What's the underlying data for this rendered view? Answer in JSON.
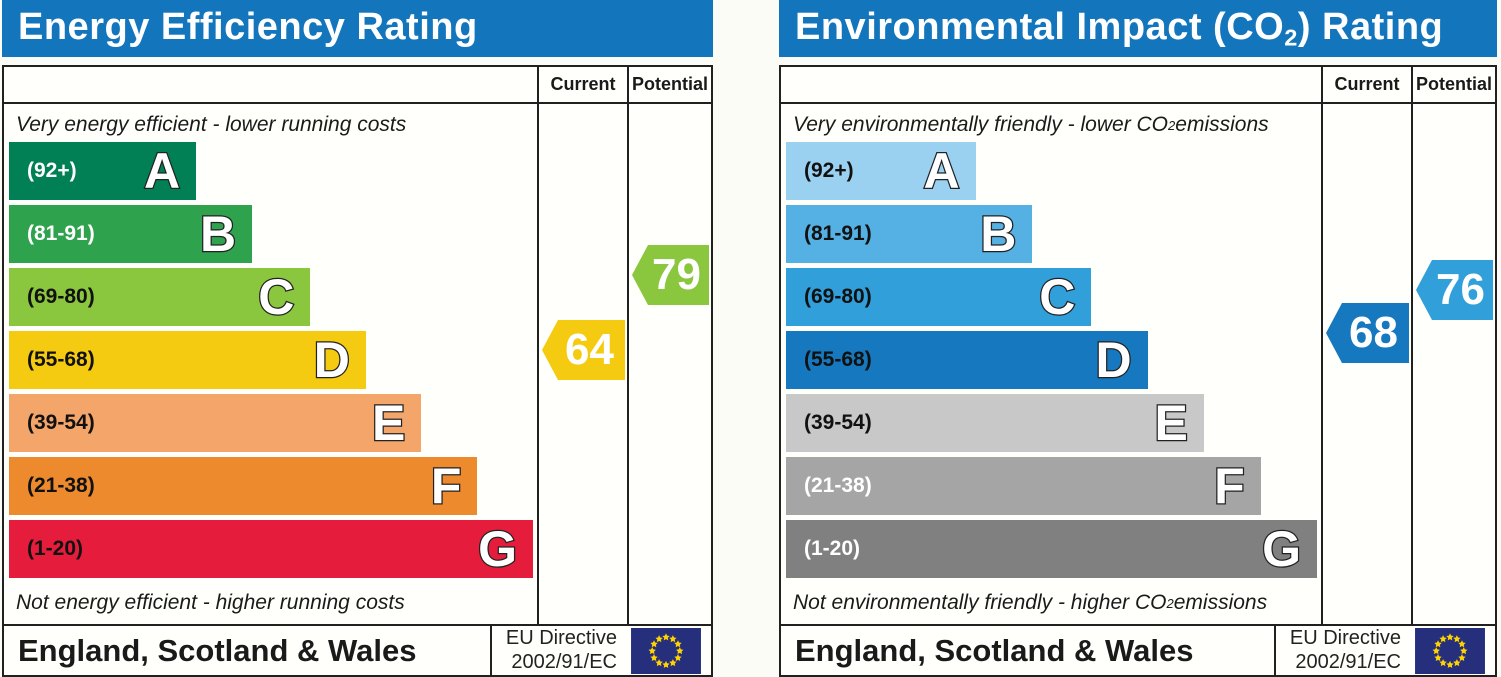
{
  "charts": [
    {
      "header": {
        "title_pre": "Energy Efficiency Rating",
        "title_sub": "",
        "title_post": "",
        "bg": "#1376bd"
      },
      "table": {
        "current_label": "Current",
        "potential_label": "Potential"
      },
      "captions": {
        "top_pre": "Very energy efficient - lower running costs",
        "top_sub": "",
        "top_post": "",
        "bottom_pre": "Not energy efficient - higher running costs",
        "bottom_sub": "",
        "bottom_post": ""
      },
      "bands": [
        {
          "letter": "A",
          "range_label": "(92+)",
          "lo": 92,
          "hi": 100,
          "color": "#008054",
          "label_color": "#ffffff",
          "width_pct": 35.7
        },
        {
          "letter": "B",
          "range_label": "(81-91)",
          "lo": 81,
          "hi": 91,
          "color": "#2ea24c",
          "label_color": "#ffffff",
          "width_pct": 46.4
        },
        {
          "letter": "C",
          "range_label": "(69-80)",
          "lo": 69,
          "hi": 80,
          "color": "#8bc63f",
          "label_color": "#111111",
          "width_pct": 57.5
        },
        {
          "letter": "D",
          "range_label": "(55-68)",
          "lo": 55,
          "hi": 68,
          "color": "#f5cb11",
          "label_color": "#111111",
          "width_pct": 68.1
        },
        {
          "letter": "E",
          "range_label": "(39-54)",
          "lo": 39,
          "hi": 54,
          "color": "#f4a56a",
          "label_color": "#111111",
          "width_pct": 78.7
        },
        {
          "letter": "F",
          "range_label": "(21-38)",
          "lo": 21,
          "hi": 38,
          "color": "#ee8a2e",
          "label_color": "#111111",
          "width_pct": 89.4
        },
        {
          "letter": "G",
          "range_label": "(1-20)",
          "lo": 1,
          "hi": 20,
          "color": "#e51c3b",
          "label_color": "#111111",
          "width_pct": 100
        }
      ],
      "current": {
        "value": "64",
        "num": 64,
        "color": "#f5cb11"
      },
      "potential": {
        "value": "79",
        "num": 79,
        "color": "#8bc63f"
      },
      "footer": {
        "region": "England, Scotland & Wales",
        "directive_line1": "EU Directive",
        "directive_line2": "2002/91/EC"
      }
    },
    {
      "header": {
        "title_pre": "Environmental Impact (CO",
        "title_sub": "2",
        "title_post": ") Rating",
        "bg": "#1376bd"
      },
      "table": {
        "current_label": "Current",
        "potential_label": "Potential"
      },
      "captions": {
        "top_pre": "Very environmentally friendly - lower CO",
        "top_sub": "2",
        "top_post": " emissions",
        "bottom_pre": "Not environmentally friendly - higher CO",
        "bottom_sub": "2",
        "bottom_post": " emissions"
      },
      "bands": [
        {
          "letter": "A",
          "range_label": "(92+)",
          "lo": 92,
          "hi": 100,
          "color": "#9ad1f0",
          "label_color": "#111111",
          "width_pct": 35.7
        },
        {
          "letter": "B",
          "range_label": "(81-91)",
          "lo": 81,
          "hi": 91,
          "color": "#55b0e4",
          "label_color": "#111111",
          "width_pct": 46.4
        },
        {
          "letter": "C",
          "range_label": "(69-80)",
          "lo": 69,
          "hi": 80,
          "color": "#319fd9",
          "label_color": "#111111",
          "width_pct": 57.5
        },
        {
          "letter": "D",
          "range_label": "(55-68)",
          "lo": 55,
          "hi": 68,
          "color": "#1678be",
          "label_color": "#111111",
          "width_pct": 68.1
        },
        {
          "letter": "E",
          "range_label": "(39-54)",
          "lo": 39,
          "hi": 54,
          "color": "#c8c8c8",
          "label_color": "#111111",
          "width_pct": 78.7
        },
        {
          "letter": "F",
          "range_label": "(21-38)",
          "lo": 21,
          "hi": 38,
          "color": "#a5a5a5",
          "label_color": "#ffffff",
          "width_pct": 89.4
        },
        {
          "letter": "G",
          "range_label": "(1-20)",
          "lo": 1,
          "hi": 20,
          "color": "#808080",
          "label_color": "#ffffff",
          "width_pct": 100
        }
      ],
      "current": {
        "value": "68",
        "num": 68,
        "color": "#1678be"
      },
      "potential": {
        "value": "76",
        "num": 76,
        "color": "#319fd9"
      },
      "footer": {
        "region": "England, Scotland & Wales",
        "directive_line1": "EU Directive",
        "directive_line2": "2002/91/EC"
      }
    }
  ],
  "eu_flag": {
    "bg": "#252f7c",
    "star_color": "#ffd200"
  },
  "chart_data": [
    {
      "type": "bar",
      "title": "Energy Efficiency Rating",
      "categories": [
        "A (92+)",
        "B (81-91)",
        "C (69-80)",
        "D (55-68)",
        "E (39-54)",
        "F (21-38)",
        "G (1-20)"
      ],
      "relative_bar_widths": [
        0.36,
        0.46,
        0.58,
        0.68,
        0.79,
        0.89,
        1.0
      ],
      "band_colors": [
        "#008054",
        "#2ea24c",
        "#8bc63f",
        "#f5cb11",
        "#f4a56a",
        "#ee8a2e",
        "#e51c3b"
      ],
      "current": 64,
      "current_band": "D",
      "potential": 79,
      "potential_band": "C",
      "top_caption": "Very energy efficient - lower running costs",
      "bottom_caption": "Not energy efficient - higher running costs",
      "region": "England, Scotland & Wales",
      "directive": "EU Directive 2002/91/EC",
      "legend_position": "right-columns (Current / Potential)"
    },
    {
      "type": "bar",
      "title": "Environmental Impact (CO2) Rating",
      "categories": [
        "A (92+)",
        "B (81-91)",
        "C (69-80)",
        "D (55-68)",
        "E (39-54)",
        "F (21-38)",
        "G (1-20)"
      ],
      "relative_bar_widths": [
        0.36,
        0.46,
        0.58,
        0.68,
        0.79,
        0.89,
        1.0
      ],
      "band_colors": [
        "#9ad1f0",
        "#55b0e4",
        "#319fd9",
        "#1678be",
        "#c8c8c8",
        "#a5a5a5",
        "#808080"
      ],
      "current": 68,
      "current_band": "D",
      "potential": 76,
      "potential_band": "C",
      "top_caption": "Very environmentally friendly - lower CO2 emissions",
      "bottom_caption": "Not environmentally friendly - higher CO2 emissions",
      "region": "England, Scotland & Wales",
      "directive": "EU Directive 2002/91/EC",
      "legend_position": "right-columns (Current / Potential)"
    }
  ]
}
